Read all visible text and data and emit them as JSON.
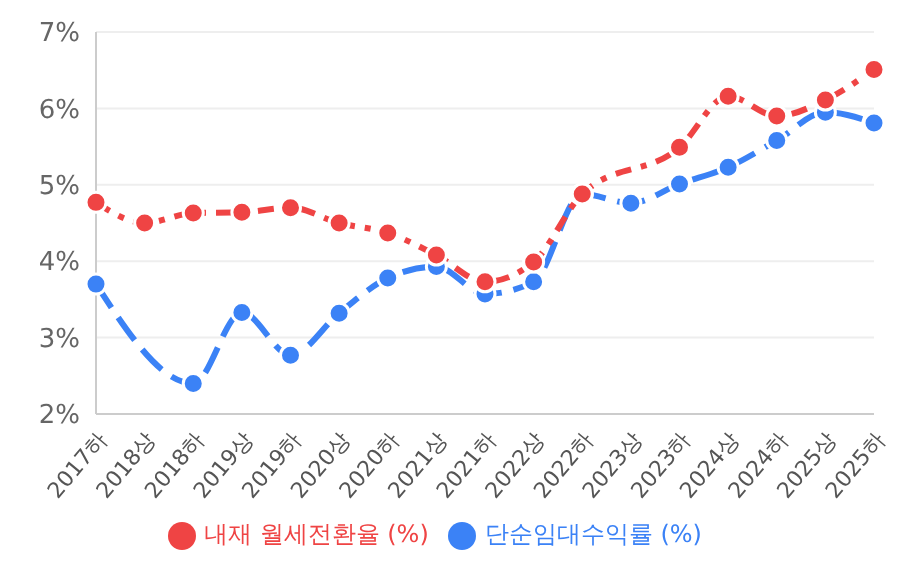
{
  "chart_data": {
    "type": "line",
    "categories": [
      "2017하",
      "2018상",
      "2018하",
      "2019상",
      "2019하",
      "2020상",
      "2020하",
      "2021상",
      "2021하",
      "2022상",
      "2022하",
      "2023상",
      "2023하",
      "2024상",
      "2024하",
      "2025상",
      "2025하"
    ],
    "series": [
      {
        "name": "단순임대수익률 (%)",
        "color": "#3b82f6",
        "line_style": "dashed",
        "values": [
          3.7,
          null,
          2.4,
          3.33,
          2.77,
          3.32,
          3.78,
          3.93,
          3.57,
          3.73,
          4.88,
          4.76,
          5.01,
          5.23,
          5.58,
          5.95,
          5.81
        ]
      },
      {
        "name": "내재 월세전환율 (%)",
        "color": "#ef4444",
        "line_style": "dotted",
        "values": [
          4.77,
          4.5,
          4.63,
          4.64,
          4.7,
          4.5,
          4.37,
          4.08,
          3.73,
          3.99,
          4.88,
          null,
          5.49,
          6.16,
          5.9,
          6.11,
          6.51
        ]
      }
    ],
    "ylim": [
      2,
      7
    ],
    "yticks": [
      {
        "value": 2,
        "label": "2%"
      },
      {
        "value": 3,
        "label": "3%"
      },
      {
        "value": 4,
        "label": "4%"
      },
      {
        "value": 5,
        "label": "5%"
      },
      {
        "value": 6,
        "label": "6%"
      },
      {
        "value": 7,
        "label": "7%"
      }
    ],
    "grid": "y",
    "legend": "bottom",
    "marker": "circle"
  }
}
